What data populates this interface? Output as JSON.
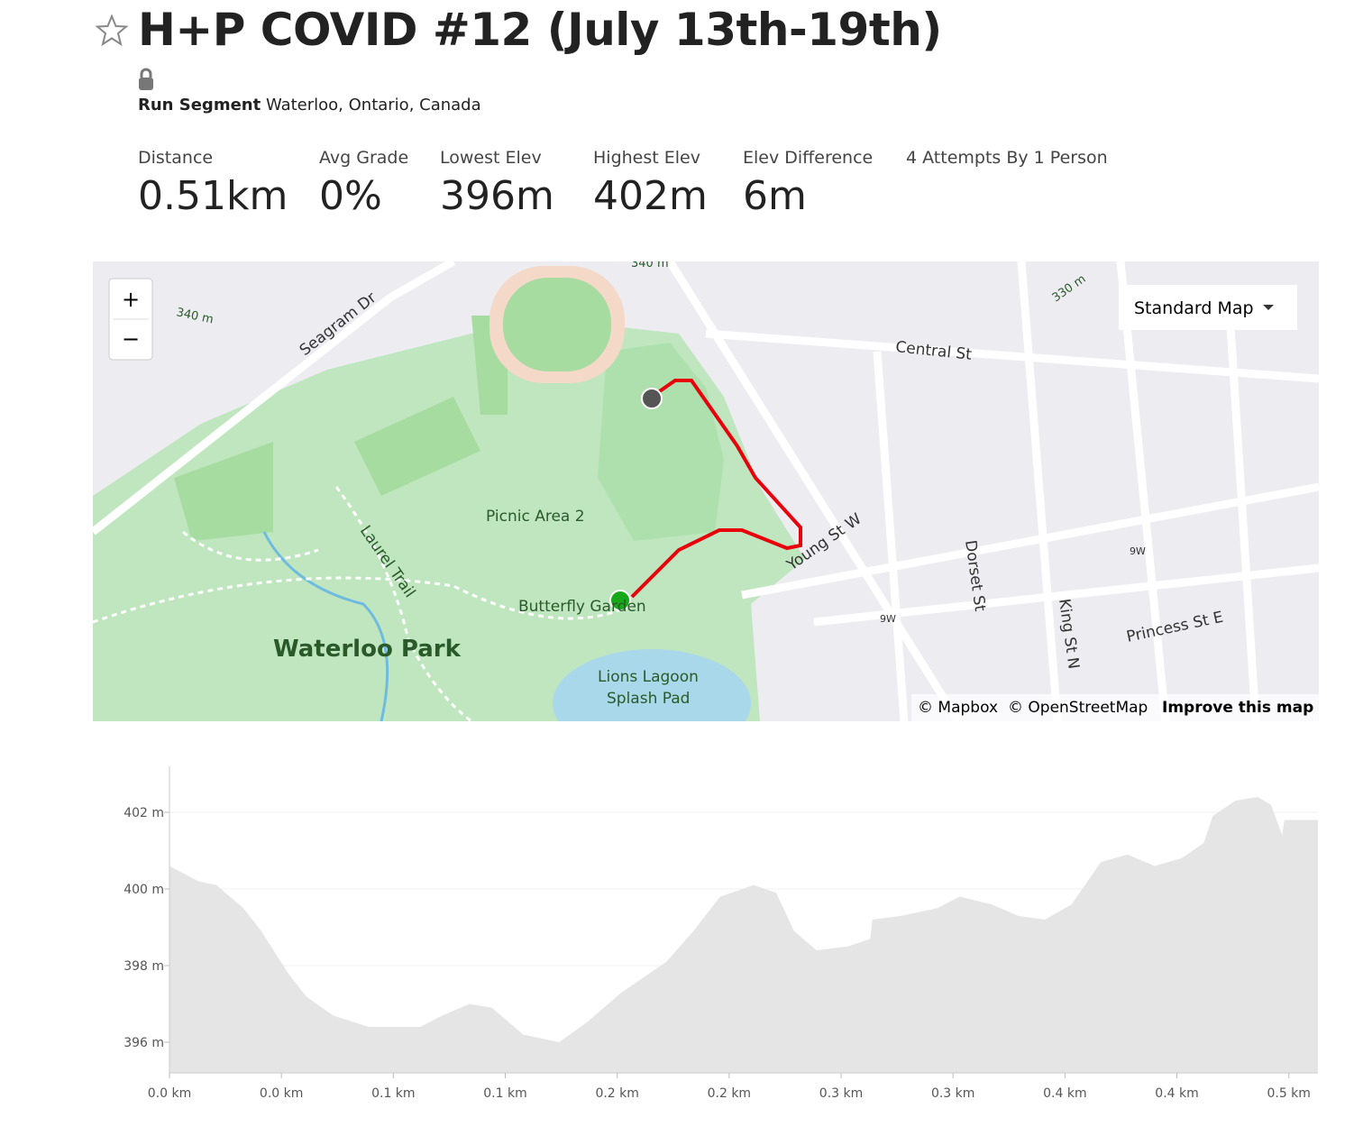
{
  "header": {
    "title": "H+P COVID #12 (July 13th-19th)",
    "segment_type": "Run Segment",
    "location": "Waterloo, Ontario, Canada"
  },
  "stats": [
    {
      "label": "Distance",
      "value": "0.51km"
    },
    {
      "label": "Avg Grade",
      "value": "0%"
    },
    {
      "label": "Lowest Elev",
      "value": "396m"
    },
    {
      "label": "Highest Elev",
      "value": "402m"
    },
    {
      "label": "Elev Difference",
      "value": "6m"
    },
    {
      "label": "4 Attempts By 1 Person"
    }
  ],
  "map": {
    "zoom_in": "+",
    "zoom_out": "−",
    "style_selector": "Standard Map",
    "labels": [
      "Seagram Dr",
      "340 m",
      "340 m",
      "330 m",
      "Central St",
      "Picnic Area 2",
      "Laurel Trail",
      "Butterfly Garden",
      "Waterloo Park",
      "Lions Lagoon",
      "Splash Pad",
      "Young St W",
      "Dorset St",
      "King St N",
      "Princess St E",
      "9W",
      "9W"
    ],
    "attribution": {
      "mapbox": "© Mapbox",
      "osm": "© OpenStreetMap",
      "improve": "Improve this map"
    }
  },
  "chart_data": {
    "type": "area",
    "color": "#e5e5e5",
    "x": [
      0,
      0.013,
      0.021,
      0.033,
      0.041,
      0.053,
      0.061,
      0.073,
      0.089,
      0.112,
      0.122,
      0.134,
      0.144,
      0.158,
      0.174,
      0.186,
      0.202,
      0.222,
      0.234,
      0.246,
      0.261,
      0.271,
      0.279,
      0.289,
      0.303,
      0.313,
      0.314,
      0.327,
      0.343,
      0.353,
      0.367,
      0.379,
      0.391,
      0.403,
      0.416,
      0.428,
      0.44,
      0.452,
      0.462,
      0.466,
      0.476,
      0.486,
      0.492,
      0.497,
      0.498,
      0.513
    ],
    "values": [
      400.6,
      400.2,
      400.1,
      399.5,
      398.9,
      397.8,
      397.2,
      396.7,
      396.4,
      396.4,
      396.7,
      397.0,
      396.9,
      396.2,
      396.0,
      396.5,
      397.3,
      398.1,
      398.9,
      399.8,
      400.1,
      399.9,
      398.9,
      398.4,
      398.5,
      398.7,
      399.2,
      399.3,
      399.5,
      399.8,
      399.6,
      399.3,
      399.2,
      399.6,
      400.7,
      400.9,
      400.6,
      400.8,
      401.2,
      401.9,
      402.3,
      402.4,
      402.2,
      401.4,
      401.8,
      401.8
    ],
    "xlim": [
      0,
      0.513
    ],
    "ylim": [
      395.2,
      403.2
    ],
    "yticks": [
      {
        "value": 396,
        "label": "396 m"
      },
      {
        "value": 398,
        "label": "398 m"
      },
      {
        "value": 400,
        "label": "400 m"
      },
      {
        "value": 402,
        "label": "402 m"
      }
    ],
    "xticks": [
      {
        "value": 0,
        "label": "0.0 km"
      },
      {
        "value": 0.05,
        "label": "0.0 km"
      },
      {
        "value": 0.1,
        "label": "0.1 km"
      },
      {
        "value": 0.15,
        "label": "0.1 km"
      },
      {
        "value": 0.2,
        "label": "0.2 km"
      },
      {
        "value": 0.25,
        "label": "0.2 km"
      },
      {
        "value": 0.3,
        "label": "0.3 km"
      },
      {
        "value": 0.35,
        "label": "0.3 km"
      },
      {
        "value": 0.4,
        "label": "0.4 km"
      },
      {
        "value": 0.45,
        "label": "0.4 km"
      },
      {
        "value": 0.5,
        "label": "0.5 km"
      }
    ]
  }
}
